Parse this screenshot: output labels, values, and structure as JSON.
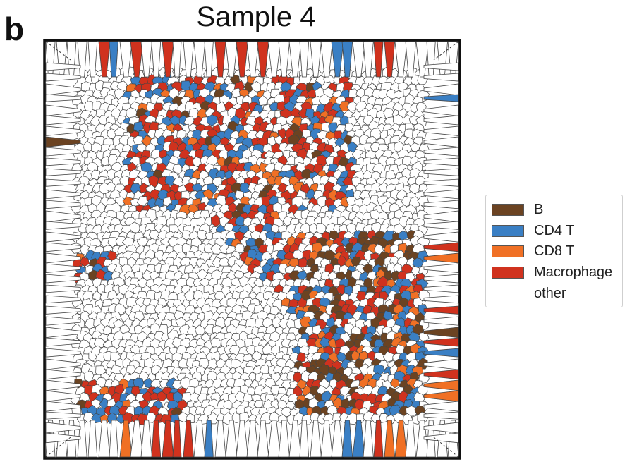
{
  "figure": {
    "panel_letter": "b",
    "title": "Sample 4"
  },
  "legend": {
    "items": [
      {
        "label": "B",
        "color": "#6b4322"
      },
      {
        "label": "CD4 T",
        "color": "#3a7fc4"
      },
      {
        "label": "CD8 T",
        "color": "#f07025"
      },
      {
        "label": "Macrophage",
        "color": "#d0321e"
      },
      {
        "label": "other",
        "color": "#ffffff"
      }
    ]
  },
  "colors": {
    "other_cell": "#ffffff",
    "cell_edge": "#444444",
    "frame": "#111111"
  }
}
